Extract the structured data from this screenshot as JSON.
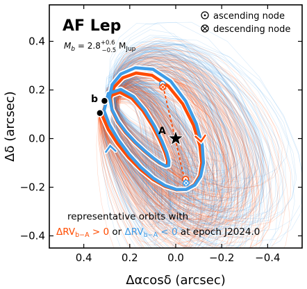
{
  "chart_data": {
    "type": "line",
    "title": "AF Lep",
    "mass_label": {
      "prefix": "M",
      "prefix_sub": "b",
      "equals": " = 2.8",
      "plus": "+0.6",
      "minus": "−0.5",
      "unit": " M",
      "unit_sub": "Jup"
    },
    "xlabel": "Δαcosδ (arcsec)",
    "ylabel": "Δδ (arcsec)",
    "xlim": [
      0.55,
      -0.55
    ],
    "ylim": [
      -0.45,
      0.55
    ],
    "xticks": [
      0.4,
      0.2,
      0.0,
      -0.2,
      -0.4
    ],
    "xtick_labels": [
      "0.4",
      "0.2",
      "0.0",
      "−0.2",
      "−0.4"
    ],
    "yticks": [
      -0.4,
      -0.2,
      0.0,
      0.2,
      0.4
    ],
    "ytick_labels": [
      "−0.4",
      "−0.2",
      "0.0",
      "0.2",
      "0.4"
    ],
    "legend": {
      "position": "top-right",
      "items": [
        {
          "symbol": "circle-dot",
          "label": "ascending node"
        },
        {
          "symbol": "circle-cross",
          "label": "descending node"
        }
      ]
    },
    "annotation": {
      "line1": "representative orbits with",
      "red_main": "ΔRV",
      "red_sub": "b−A",
      "red_tail": " > 0",
      "or": " or ",
      "blue_main": "ΔRV",
      "blue_sub": "b−A",
      "blue_tail": " < 0",
      "epoch": " at epoch J2024.0"
    },
    "star": {
      "label": "A",
      "x": 0.0,
      "y": 0.0
    },
    "planet": {
      "label": "b",
      "positions": [
        {
          "x": 0.31,
          "y": 0.155
        },
        {
          "x": 0.33,
          "y": 0.105
        }
      ]
    },
    "colors": {
      "red": "#ff4b00",
      "blue": "#3d9ce8",
      "star": "#000000"
    },
    "series": [
      {
        "color": "red",
        "x": [
          0.3195,
          0.2936,
          0.253,
          0.2042,
          0.1515,
          0.0978,
          0.0456,
          -0.0031,
          -0.0461,
          -0.0808,
          -0.1042,
          -0.1132,
          -0.1048,
          -0.077,
          -0.0301,
          0.0323,
          0.1032,
          0.1725,
          0.2301,
          0.2682,
          0.2833,
          0.2767,
          0.253,
          0.2182,
          0.178,
          0.1373,
          0.0999,
          0.0691,
          0.0473,
          0.0359,
          0.0357,
          0.0469,
          0.0691,
          0.1015,
          0.1427,
          0.191,
          0.2437,
          0.2969,
          0.3195
        ],
        "y": [
          0.095,
          0.0382,
          -0.0213,
          -0.0783,
          -0.1285,
          -0.1688,
          -0.1968,
          -0.2106,
          -0.2088,
          -0.1901,
          -0.1538,
          -0.0995,
          -0.0284,
          0.0558,
          0.1428,
          0.2161,
          0.2602,
          0.2697,
          0.25,
          0.2119,
          0.1651,
          0.1163,
          0.0689,
          0.0245,
          -0.0159,
          -0.0513,
          -0.0804,
          -0.1013,
          -0.1116,
          -0.1086,
          -0.0903,
          -0.0559,
          -0.0069,
          0.0527,
          0.1144,
          0.1655,
          0.1903,
          0.1715,
          0.095
        ]
      },
      {
        "color": "blue",
        "x": [
          0.312,
          0.2885,
          0.2503,
          0.2033,
          0.1519,
          0.0989,
          0.0468,
          -0.0024,
          -0.0464,
          -0.0828,
          -0.1086,
          -0.1207,
          -0.1153,
          -0.0896,
          -0.0429,
          0.022,
          0.0987,
          0.1758,
          0.2387,
          0.2766,
          0.288,
          0.2777,
          0.2517,
          0.2157,
          0.1749,
          0.1339,
          0.0962,
          0.0649,
          0.0426,
          0.0305,
          0.0292,
          0.0391,
          0.0601,
          0.0921,
          0.1338,
          0.1838,
          0.239,
          0.2935,
          0.312
        ],
        "y": [
          0.1147,
          0.0571,
          -0.0044,
          -0.0642,
          -0.1178,
          -0.1616,
          -0.1928,
          -0.2091,
          -0.209,
          -0.1912,
          -0.155,
          -0.1002,
          -0.0275,
          0.0609,
          0.155,
          0.2366,
          0.2848,
          0.2914,
          0.2653,
          0.2217,
          0.1715,
          0.1208,
          0.0719,
          0.0262,
          -0.0151,
          -0.0512,
          -0.0809,
          -0.1024,
          -0.1133,
          -0.1108,
          -0.0929,
          -0.0589,
          -0.0097,
          0.0514,
          0.1164,
          0.1724,
          0.2022,
          0.1855,
          0.1147
        ]
      }
    ]
  }
}
